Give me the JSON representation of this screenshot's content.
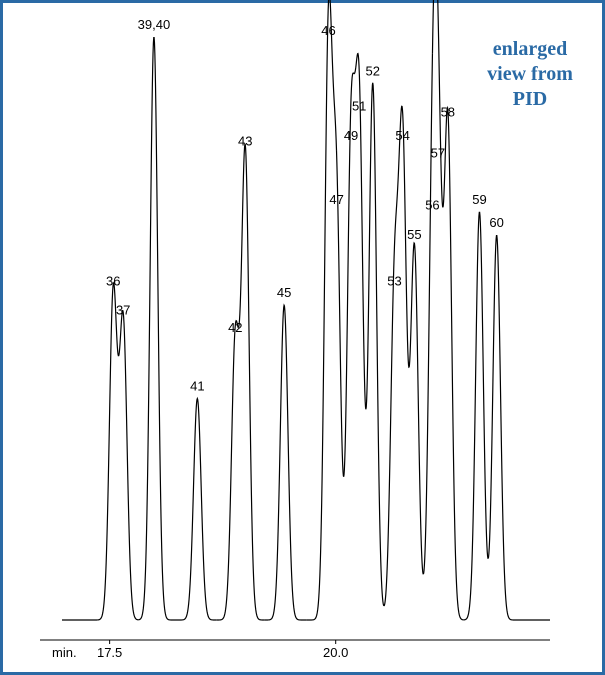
{
  "chart_data": {
    "type": "chromatogram",
    "annotation": [
      "enlarged",
      "view from",
      "PID"
    ],
    "xlabel": "min.",
    "xlim": [
      16.73,
      22.37
    ],
    "xticks": [
      17.5,
      {
        "value": 20,
        "label": "20.0"
      }
    ],
    "ylim": [
      0,
      100
    ],
    "color": "#000000",
    "peaks": {
      "labels": [
        "36",
        "37",
        "39,40",
        "41",
        "42",
        "43",
        "45",
        "46",
        "47",
        "49",
        "51",
        "52",
        "53",
        "54",
        "55",
        "56",
        "57",
        "58",
        "59",
        "60"
      ],
      "x": [
        17.54,
        17.65,
        17.99,
        18.47,
        18.89,
        19.0,
        19.43,
        19.92,
        20.01,
        20.17,
        20.26,
        20.41,
        20.65,
        20.74,
        20.87,
        21.07,
        21.13,
        21.24,
        21.59,
        21.78
      ],
      "values": [
        56,
        51,
        100,
        38,
        48,
        80,
        54,
        99,
        70,
        81,
        86,
        92,
        56,
        81,
        64,
        69,
        78,
        85,
        70,
        66
      ]
    }
  }
}
